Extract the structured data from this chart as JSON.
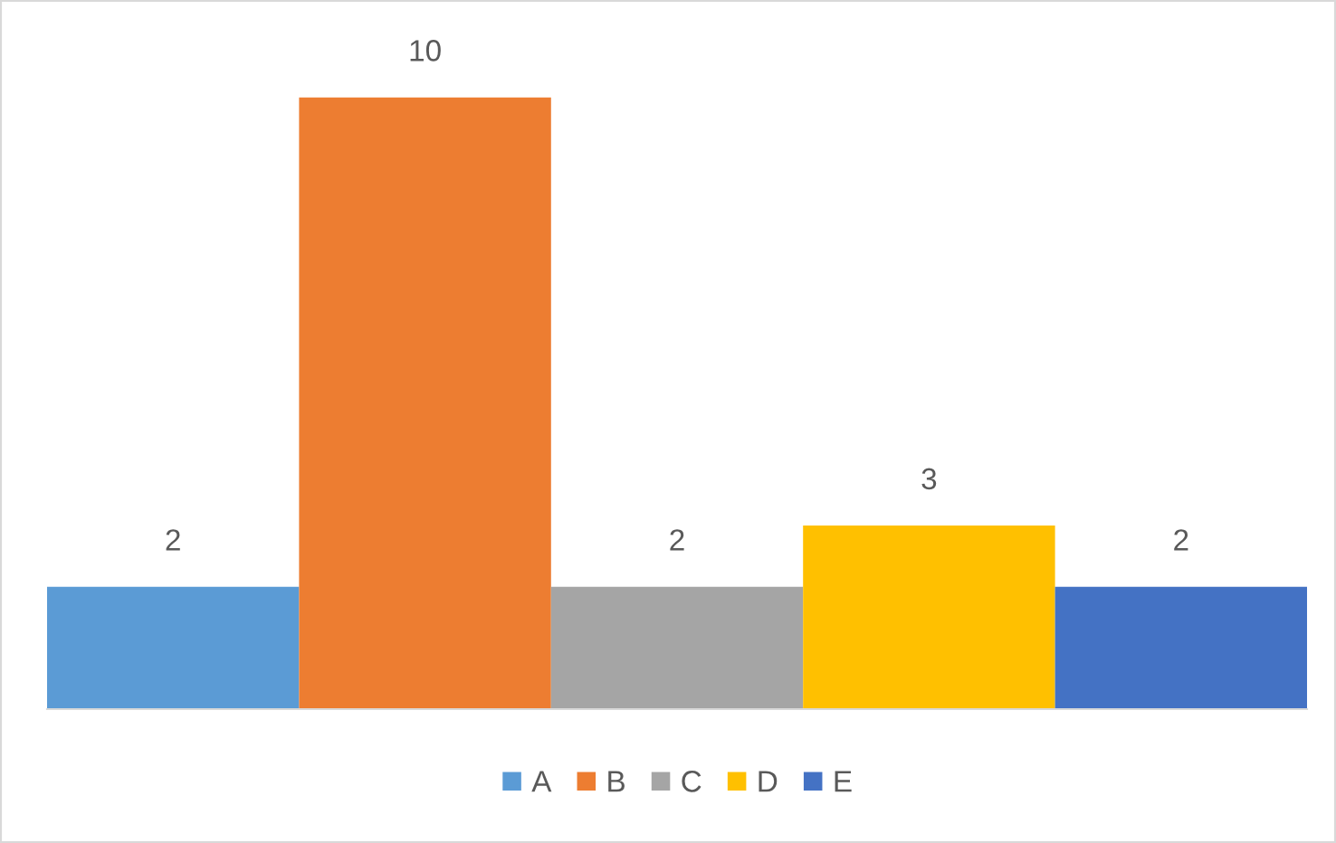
{
  "chart_data": {
    "type": "bar",
    "categories": [
      null
    ],
    "series": [
      {
        "name": "A",
        "color": "#5b9bd5",
        "values": [
          2
        ]
      },
      {
        "name": "B",
        "color": "#ed7d31",
        "values": [
          10
        ]
      },
      {
        "name": "C",
        "color": "#a5a5a5",
        "values": [
          2
        ]
      },
      {
        "name": "D",
        "color": "#ffc000",
        "values": [
          3
        ]
      },
      {
        "name": "E",
        "color": "#4472c4",
        "values": [
          2
        ]
      }
    ],
    "data_labels": true,
    "legend": "bottom",
    "grid": false
  }
}
